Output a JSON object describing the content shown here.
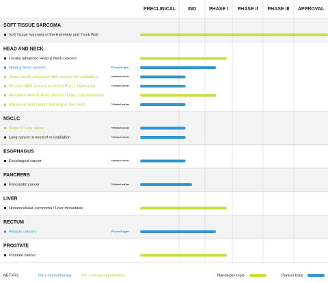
{
  "chart_data": {
    "type": "pipeline",
    "phases": [
      "PRECLINICAL",
      "IND",
      "PHASE I",
      "PHASE II",
      "PHASE III",
      "APPROVAL"
    ],
    "xlim": [
      0,
      6
    ],
    "sections": [
      {
        "title": "SOFT TISSUE SARCOMA",
        "rows": [
          {
            "label": "Soft Tissue Sarcoma of the Extremity and Trunk Wall",
            "text_color": "#222222",
            "bar_color": "#c8e03c",
            "value": 6
          }
        ]
      },
      {
        "title": "HEAD AND NECK",
        "rows": [
          {
            "label": "Locally advanced Head & Neck cancers",
            "text_color": "#222222",
            "bar_color": "#c8e03c",
            "value": 2.8
          },
          {
            "label": "Head & Neck cancers",
            "text_color": "#2f96d4",
            "partner": "PharmaEngine",
            "bar_color": "#2f96d4",
            "value": 2.4
          },
          {
            "label": "Smac, locally advanced H&N cancers (re-irradiation)",
            "text_color": "#b5cf2c",
            "partner": "MD Anderson Cancer Center",
            "bar_color": "#2f96d4",
            "value": 1.25
          },
          {
            "label": "Rec/met H&N cancers w/ limited PD-L1 expression",
            "text_color": "#b5cf2c",
            "partner": "MD Anderson Cancer Center",
            "bar_color": "#2f96d4",
            "value": 1.25
          },
          {
            "label": "Recurrent Head & Neck cancers / Lung-Liver metastasis",
            "text_color": "#b5cf2c",
            "bar_color": "#c8e03c",
            "value": 2.4
          },
          {
            "label": "Advanced solid tumors and lung or liver mets",
            "text_color": "#b5cf2c",
            "partner": "MD Anderson Cancer Center",
            "bar_color": "#2f96d4",
            "value": 1.25
          }
        ]
      },
      {
        "title": "NSCLC",
        "rows": [
          {
            "label": "Stage IV lung cancer",
            "text_color": "#b5cf2c",
            "partner": "MD Anderson Cancer Center",
            "bar_color": "#2f96d4",
            "value": 1.25
          },
          {
            "label": "Lung cancer in need of re-irradiation",
            "text_color": "#222222",
            "partner": "MD Anderson Cancer Center",
            "bar_color": "#2f96d4",
            "value": 1.25
          }
        ]
      },
      {
        "title": "ESOPHAGUS",
        "rows": [
          {
            "label": "Esophageal cancer",
            "text_color": "#222222",
            "partner": "MD Anderson Cancer Center",
            "bar_color": "#2f96d4",
            "value": 1.25
          }
        ]
      },
      {
        "title": "PANCRERS",
        "rows": [
          {
            "label": "Pancreatic cancer",
            "text_color": "#222222",
            "partner": "MD Anderson Cancer Center",
            "bar_color": "#2f96d4",
            "value": 1.5
          }
        ]
      },
      {
        "title": "LIVER",
        "rows": [
          {
            "label": "Hepatocellular carcinoma / Liver metastasis",
            "text_color": "#222222",
            "bar_color": "#c8e03c",
            "value": 2.8
          }
        ]
      },
      {
        "title": "RECTUM",
        "rows": [
          {
            "label": "Rectum cancers",
            "text_color": "#2f96d4",
            "partner": "PharmaEngine",
            "bar_color": "#2f96d4",
            "value": 2.4
          }
        ]
      },
      {
        "title": "PROSTATE",
        "rows": [
          {
            "label": "Prostate cancer",
            "text_color": "#222222",
            "bar_color": "#c8e03c",
            "value": 2.8
          }
        ]
      }
    ],
    "legend": {
      "groups": [
        {
          "label": "NBTXR3",
          "color": "#222222"
        },
        {
          "label": "R3 + chemotherapy",
          "color": "#2f96d4"
        },
        {
          "label": "R3 + checkpoint inhibitors",
          "color": "#b5cf2c"
        }
      ],
      "trials": [
        {
          "label": "Nanobiotix trials",
          "color": "#c8e03c"
        },
        {
          "label": "Partner trials",
          "color": "#2f96d4"
        }
      ]
    }
  }
}
